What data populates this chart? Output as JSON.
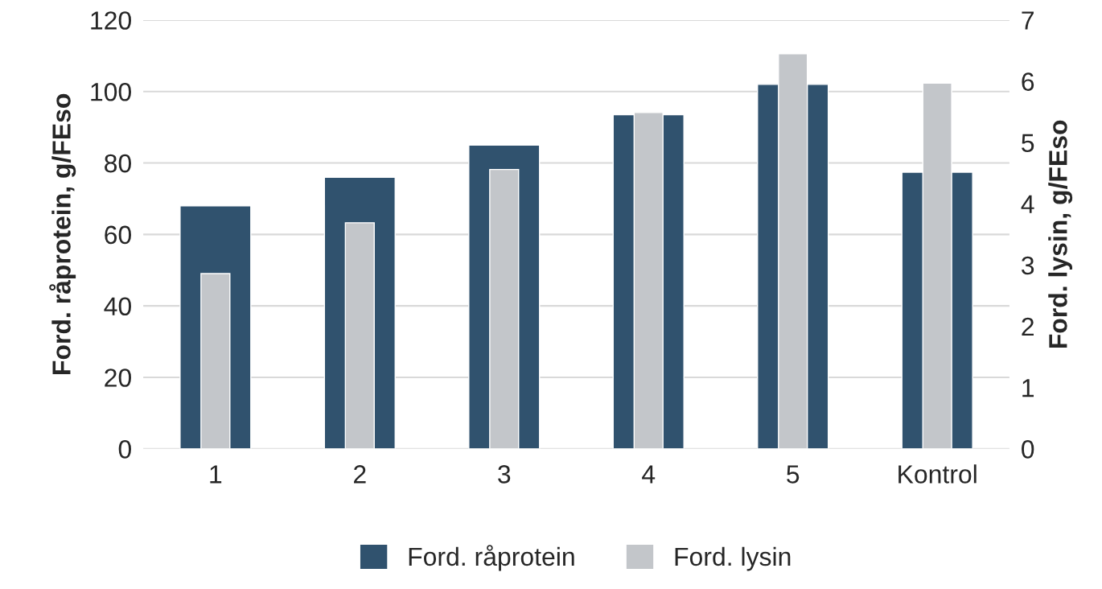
{
  "chart_data": {
    "type": "bar",
    "categories": [
      "1",
      "2",
      "3",
      "4",
      "5",
      "Kontrol"
    ],
    "series": [
      {
        "name": "Ford. råprotein",
        "color": "#30526e",
        "values": [
          68,
          76,
          85,
          93.5,
          102,
          77.4
        ]
      },
      {
        "name": "Ford. lysin",
        "color": "#c3c6ca",
        "axis": "y2",
        "values": [
          2.86,
          3.69,
          4.56,
          5.49,
          6.45,
          5.97
        ]
      }
    ],
    "ylabel": "Ford. råprotein, g/FEso",
    "y2label": "Ford. lysin, g/FEso",
    "ylim": [
      0,
      120
    ],
    "yticks": [
      0,
      20,
      40,
      60,
      80,
      100,
      120
    ],
    "y2lim": [
      0,
      7
    ],
    "y2ticks": [
      0,
      1,
      2,
      3,
      4,
      5,
      6,
      7
    ],
    "grid": "y",
    "legend": "bottom"
  }
}
